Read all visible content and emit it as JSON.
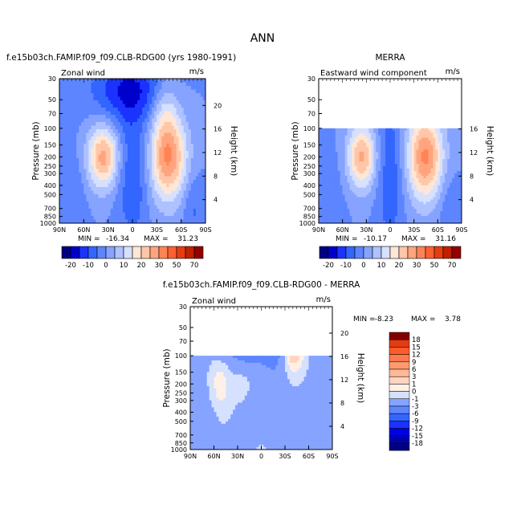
{
  "page": {
    "title": "ANN"
  },
  "colors": {
    "negative": [
      "#000080",
      "#0000b3",
      "#0000e6",
      "#1a33ff",
      "#3366ff",
      "#5c85ff",
      "#85a3ff",
      "#aec2ff",
      "#d6e0ff"
    ],
    "positive": [
      "#ffe6d5",
      "#ffc6a8",
      "#ffa47c",
      "#ff8455",
      "#ff6030",
      "#e63d10",
      "#c02000",
      "#950000",
      "#7a0000"
    ],
    "diff_neg": [
      "#000080",
      "#0000cc",
      "#1a33ff",
      "#3366ff",
      "#5c85ff",
      "#85a3ff",
      "#aec2ff",
      "#d6e0ff"
    ],
    "diff_pos": [
      "#fff0e6",
      "#ffd5bf",
      "#ffb899",
      "#ff9a70",
      "#ff7a4d",
      "#ff5a2a",
      "#e63a10",
      "#b01800",
      "#800000"
    ]
  },
  "chart_data": [
    {
      "id": "model",
      "type": "heatmap",
      "title": "f.e15b03ch.FAMIP.f09_f09.CLB-RDG00 (yrs 1980-1991)",
      "left_label": "Zonal wind",
      "right_label": "m/s",
      "ylabel": "Pressure (mb)",
      "ylabel_right": "Height (km)",
      "y_ticks": [
        "30",
        "50",
        "70",
        "100",
        "150",
        "200",
        "250",
        "300",
        "400",
        "500",
        "700",
        "850",
        "1000"
      ],
      "y_ticks_right": [
        "20",
        "16",
        "12",
        "8",
        "4"
      ],
      "x_ticks": [
        "90N",
        "60N",
        "30N",
        "0",
        "30S",
        "60S",
        "90S"
      ],
      "stats": {
        "min_label": "MIN =",
        "min": "-16.34",
        "max_label": "MAX =",
        "max": "31.23"
      },
      "ylim": [
        1000,
        30
      ],
      "xlim": [
        90,
        -90
      ]
    },
    {
      "id": "obs",
      "type": "heatmap",
      "title": "MERRA",
      "left_label": "Eastward wind component",
      "right_label": "m/s",
      "ylabel": "Pressure (mb)",
      "ylabel_right": "Height (km)",
      "y_ticks": [
        "30",
        "50",
        "70",
        "100",
        "150",
        "200",
        "250",
        "300",
        "400",
        "500",
        "700",
        "850",
        "1000"
      ],
      "y_ticks_right": [
        "16",
        "12",
        "8",
        "4"
      ],
      "x_ticks": [
        "90N",
        "60N",
        "30N",
        "0",
        "30S",
        "60S",
        "90S"
      ],
      "stats": {
        "min_label": "MIN =",
        "min": "-10.17",
        "max_label": "MAX =",
        "max": "31.16"
      },
      "ylim": [
        1000,
        30
      ],
      "data_top": 100,
      "xlim": [
        90,
        -90
      ]
    },
    {
      "id": "diff",
      "type": "heatmap",
      "title": "f.e15b03ch.FAMIP.f09_f09.CLB-RDG00 - MERRA",
      "left_label": "Zonal wind",
      "right_label": "m/s",
      "ylabel": "Pressure (mb)",
      "ylabel_right": "Height (km)",
      "y_ticks": [
        "30",
        "50",
        "70",
        "100",
        "150",
        "200",
        "250",
        "300",
        "400",
        "500",
        "700",
        "850",
        "1000"
      ],
      "y_ticks_right": [
        "20",
        "16",
        "12",
        "8",
        "4"
      ],
      "x_ticks": [
        "90N",
        "60N",
        "30N",
        "0",
        "30S",
        "60S",
        "90S"
      ],
      "stats": {
        "min_label": "MIN =",
        "min": "-8.23",
        "max_label": "MAX =",
        "max": "3.78"
      },
      "ylim": [
        1000,
        30
      ],
      "data_top": 100,
      "xlim": [
        90,
        -90
      ]
    }
  ],
  "colorbar_top": {
    "labels": [
      "-20",
      "-10",
      "0",
      "10",
      "20",
      "30",
      "50",
      "70"
    ]
  },
  "colorbar_diff": {
    "labels": [
      "18",
      "15",
      "12",
      "9",
      "6",
      "3",
      "1",
      "0",
      "-1",
      "-3",
      "-6",
      "-9",
      "-12",
      "-15",
      "-18"
    ]
  }
}
